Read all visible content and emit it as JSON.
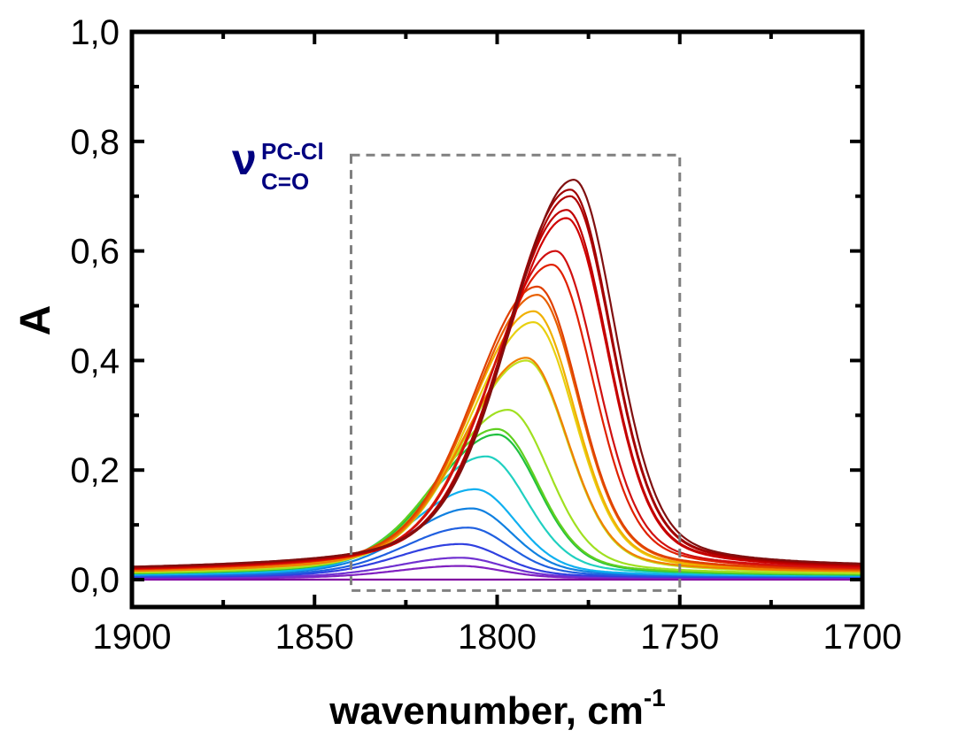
{
  "chart_data": {
    "type": "line",
    "xlabel": "wavenumber, cm",
    "xlabel_superscript": "-1",
    "ylabel": "A",
    "xlim": [
      1900,
      1700
    ],
    "ylim": [
      -0.05,
      1.0
    ],
    "x_reversed": true,
    "x_ticks": [
      1900,
      1850,
      1800,
      1750,
      1700
    ],
    "x_tick_labels": [
      "1900",
      "1850",
      "1800",
      "1750",
      "1700"
    ],
    "y_ticks": [
      0.0,
      0.2,
      0.4,
      0.6,
      0.8,
      1.0
    ],
    "y_tick_labels": [
      "0,0",
      "0,2",
      "0,4",
      "0,6",
      "0,8",
      "1,0"
    ],
    "grid": false,
    "annotation": {
      "symbol": "ν",
      "superscript": "PC-Cl",
      "subscript": "C=O"
    },
    "highlight_box": {
      "x_range": [
        1840,
        1750
      ],
      "y_range": [
        -0.02,
        0.775
      ],
      "style": "dashed",
      "color": "#808080"
    },
    "series": [
      {
        "color": "#8000a0",
        "peak_x": 1810,
        "peak": 0.0,
        "baseline_left": 0.0,
        "baseline_right": 0.0
      },
      {
        "color": "#8020c0",
        "peak_x": 1810,
        "peak": 0.025,
        "baseline_left": 0.002,
        "baseline_right": 0.002
      },
      {
        "color": "#7030d0",
        "peak_x": 1810,
        "peak": 0.04,
        "baseline_left": 0.003,
        "baseline_right": 0.003
      },
      {
        "color": "#3040e0",
        "peak_x": 1810,
        "peak": 0.065,
        "baseline_left": 0.004,
        "baseline_right": 0.004
      },
      {
        "color": "#2060e0",
        "peak_x": 1808,
        "peak": 0.095,
        "baseline_left": 0.005,
        "baseline_right": 0.005
      },
      {
        "color": "#1080e0",
        "peak_x": 1807,
        "peak": 0.13,
        "baseline_left": 0.006,
        "baseline_right": 0.006
      },
      {
        "color": "#10b0f0",
        "peak_x": 1806,
        "peak": 0.165,
        "baseline_left": 0.006,
        "baseline_right": 0.006
      },
      {
        "color": "#20d0c0",
        "peak_x": 1803,
        "peak": 0.225,
        "baseline_left": 0.007,
        "baseline_right": 0.007
      },
      {
        "color": "#20c040",
        "peak_x": 1800,
        "peak": 0.265,
        "baseline_left": 0.007,
        "baseline_right": 0.007
      },
      {
        "color": "#60d020",
        "peak_x": 1800,
        "peak": 0.275,
        "baseline_left": 0.008,
        "baseline_right": 0.008
      },
      {
        "color": "#a0e020",
        "peak_x": 1797,
        "peak": 0.31,
        "baseline_left": 0.008,
        "baseline_right": 0.009
      },
      {
        "color": "#c0e020",
        "peak_x": 1792,
        "peak": 0.4,
        "baseline_left": 0.009,
        "baseline_right": 0.01
      },
      {
        "color": "#e8d010",
        "peak_x": 1790,
        "peak": 0.47,
        "baseline_left": 0.01,
        "baseline_right": 0.011
      },
      {
        "color": "#f0b000",
        "peak_x": 1790,
        "peak": 0.49,
        "baseline_left": 0.01,
        "baseline_right": 0.012
      },
      {
        "color": "#f08000",
        "peak_x": 1792,
        "peak": 0.405,
        "baseline_left": 0.01,
        "baseline_right": 0.012
      },
      {
        "color": "#e86000",
        "peak_x": 1789,
        "peak": 0.52,
        "baseline_left": 0.011,
        "baseline_right": 0.013
      },
      {
        "color": "#e04000",
        "peak_x": 1789,
        "peak": 0.535,
        "baseline_left": 0.012,
        "baseline_right": 0.014
      },
      {
        "color": "#e02000",
        "peak_x": 1785,
        "peak": 0.575,
        "baseline_left": 0.012,
        "baseline_right": 0.015
      },
      {
        "color": "#d01010",
        "peak_x": 1784,
        "peak": 0.6,
        "baseline_left": 0.013,
        "baseline_right": 0.016
      },
      {
        "color": "#d00000",
        "peak_x": 1781,
        "peak": 0.66,
        "baseline_left": 0.013,
        "baseline_right": 0.017
      },
      {
        "color": "#c00000",
        "peak_x": 1781,
        "peak": 0.675,
        "baseline_left": 0.014,
        "baseline_right": 0.018
      },
      {
        "color": "#b00000",
        "peak_x": 1780,
        "peak": 0.7,
        "baseline_left": 0.014,
        "baseline_right": 0.019
      },
      {
        "color": "#a00000",
        "peak_x": 1780,
        "peak": 0.712,
        "baseline_left": 0.015,
        "baseline_right": 0.02
      },
      {
        "color": "#801010",
        "peak_x": 1779,
        "peak": 0.73,
        "baseline_left": 0.015,
        "baseline_right": 0.021
      }
    ]
  }
}
